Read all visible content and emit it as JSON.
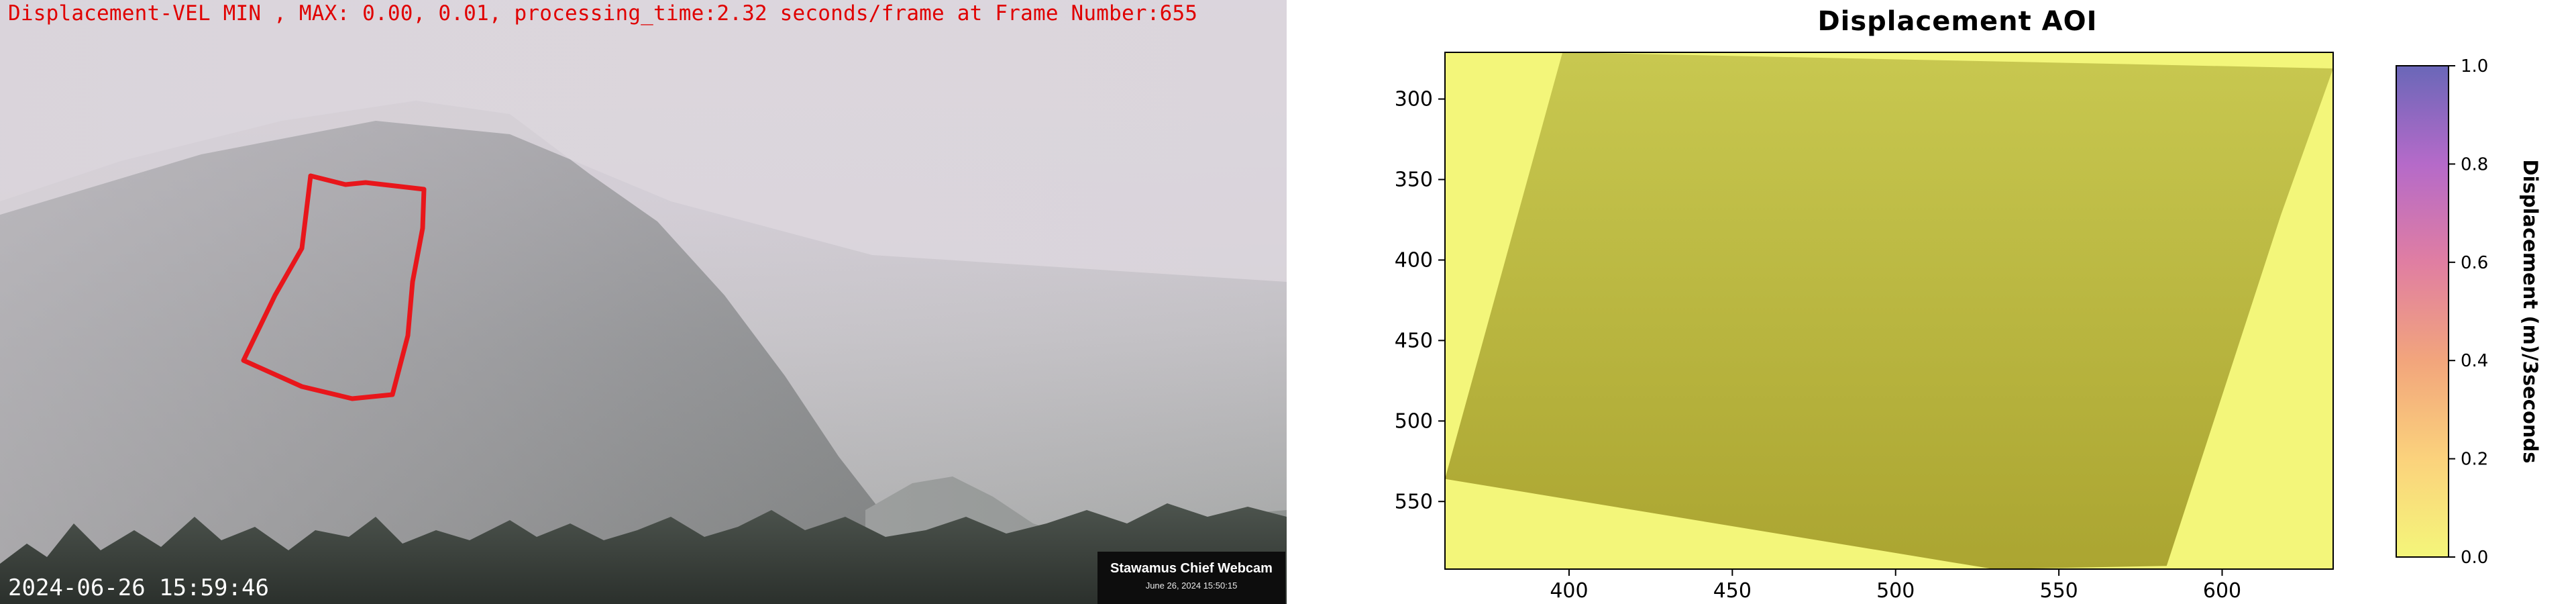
{
  "webcam": {
    "overlay_text": "Displacement-VEL MIN , MAX: 0.00, 0.01, processing_time:2.32 seconds/frame at Frame Number:655",
    "timestamp": "2024-06-26 15:59:46",
    "badge_title": "Stawamus Chief Webcam",
    "badge_date": "June 26, 2024 15:50:15",
    "aoi_color": "#e8161b"
  },
  "chart_data": {
    "type": "heatmap",
    "title": "Displacement AOI",
    "x_ticks": [
      400,
      450,
      500,
      550,
      600
    ],
    "y_ticks": [
      300,
      350,
      400,
      450,
      500,
      550
    ],
    "xlim": [
      362,
      634
    ],
    "ylim": [
      592,
      271
    ],
    "colorbar": {
      "label": "Displacement (m)/3seconds",
      "range": [
        0.0,
        1.0
      ],
      "ticks": [
        "0.0",
        "0.2",
        "0.4",
        "0.6",
        "0.8",
        "1.0"
      ],
      "colors": [
        "#f4f67a",
        "#fbd27c",
        "#f2a57c",
        "#e07ea2",
        "#b56ac9",
        "#6a67b8"
      ]
    },
    "aoi_polygon": [
      [
        398,
        271
      ],
      [
        634,
        281
      ],
      [
        618,
        372
      ],
      [
        583,
        590
      ],
      [
        530,
        592
      ],
      [
        362,
        536
      ]
    ],
    "background_color": "#f3f67a",
    "aoi_fill_top": "#c8c850",
    "aoi_fill_bottom": "#aba531"
  }
}
